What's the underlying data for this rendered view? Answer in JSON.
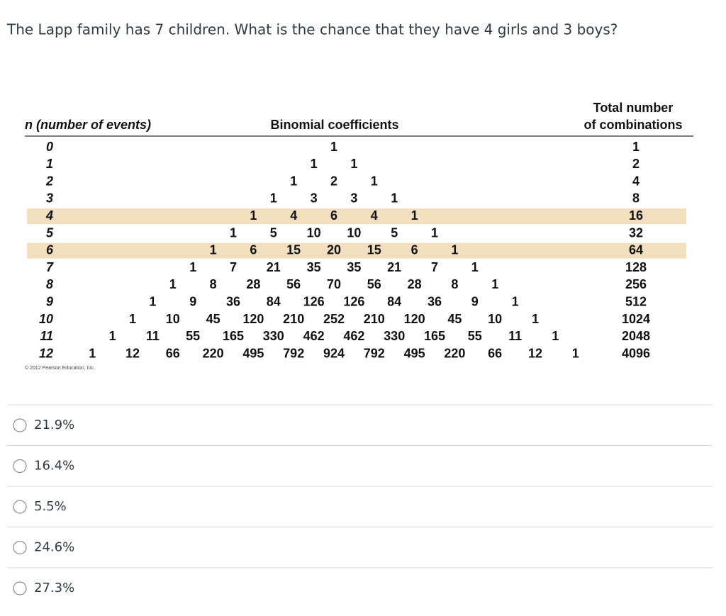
{
  "question": "The Lapp family has 7 children.  What is the chance that they have 4 girls and 3 boys?",
  "table": {
    "headers": {
      "n": "n (number of events)",
      "coefficients": "Binomial coefficients",
      "total_line1": "Total number",
      "total_line2": "of combinations"
    },
    "highlighted_rows": [
      4,
      6
    ],
    "rows": [
      {
        "n": 0,
        "coefficients": [
          1
        ],
        "total": 1
      },
      {
        "n": 1,
        "coefficients": [
          1,
          1
        ],
        "total": 2
      },
      {
        "n": 2,
        "coefficients": [
          1,
          2,
          1
        ],
        "total": 4
      },
      {
        "n": 3,
        "coefficients": [
          1,
          3,
          3,
          1
        ],
        "total": 8
      },
      {
        "n": 4,
        "coefficients": [
          1,
          4,
          6,
          4,
          1
        ],
        "total": 16
      },
      {
        "n": 5,
        "coefficients": [
          1,
          5,
          10,
          10,
          5,
          1
        ],
        "total": 32
      },
      {
        "n": 6,
        "coefficients": [
          1,
          6,
          15,
          20,
          15,
          6,
          1
        ],
        "total": 64
      },
      {
        "n": 7,
        "coefficients": [
          1,
          7,
          21,
          35,
          35,
          21,
          7,
          1
        ],
        "total": 128
      },
      {
        "n": 8,
        "coefficients": [
          1,
          8,
          28,
          56,
          70,
          56,
          28,
          8,
          1
        ],
        "total": 256
      },
      {
        "n": 9,
        "coefficients": [
          1,
          9,
          36,
          84,
          126,
          126,
          84,
          36,
          9,
          1
        ],
        "total": 512
      },
      {
        "n": 10,
        "coefficients": [
          1,
          10,
          45,
          120,
          210,
          252,
          210,
          120,
          45,
          10,
          1
        ],
        "total": 1024
      },
      {
        "n": 11,
        "coefficients": [
          1,
          11,
          55,
          165,
          330,
          462,
          462,
          330,
          165,
          55,
          11,
          1
        ],
        "total": 2048
      },
      {
        "n": 12,
        "coefficients": [
          1,
          12,
          66,
          220,
          495,
          792,
          924,
          792,
          495,
          220,
          66,
          12,
          1
        ],
        "total": 4096
      }
    ],
    "credit": "© 2012 Pearson Education, Inc."
  },
  "options": [
    "21.9%",
    "16.4%",
    "5.5%",
    "24.6%",
    "27.3%"
  ]
}
